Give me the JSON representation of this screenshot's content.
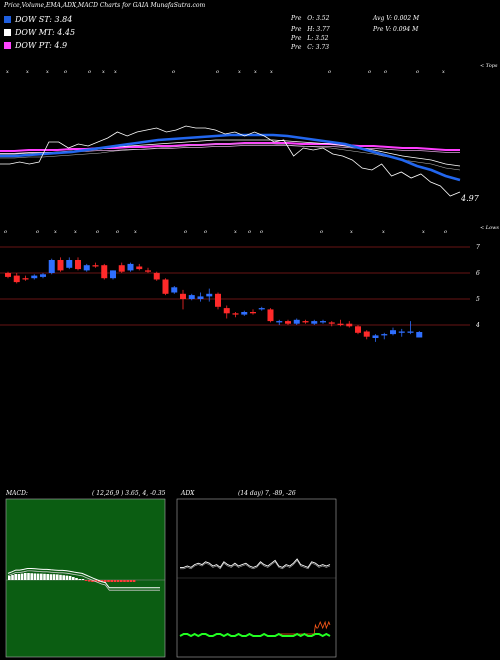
{
  "header": {
    "title": "Price,Volume,EMA,ADX,MACD Charts for GAIA MunafaSutra.com",
    "ohlc": [
      {
        "label": "Pre",
        "key": "O",
        "value": "3.52"
      },
      {
        "label": "Pre",
        "key": "H",
        "value": "3.77"
      },
      {
        "label": "Pre",
        "key": "L",
        "value": "3.52"
      },
      {
        "label": "Pre",
        "key": "C",
        "value": "3.73"
      }
    ],
    "avg_volume": "Avg V: 0.002  M",
    "pre_volume": "Pre  V: 0.094  M"
  },
  "legend": [
    {
      "label": "DOW ST: 3.84",
      "color": "#1f5fdf"
    },
    {
      "label": "DOW MT: 4.45",
      "color": "#ffffff"
    },
    {
      "label": "DOW PT: 4.9",
      "color": "#ff44ff"
    }
  ],
  "labels": {
    "price_corner": "4.97",
    "top_marker": "< Tops",
    "low_marker": "< Lows",
    "tick_mark": "x",
    "cycle_mark": "o"
  },
  "macd_panel": {
    "title": "MACD:",
    "params": "( 12,26,9 ) 3.65,  4,  -0.35"
  },
  "adx_panel": {
    "title": "ADX",
    "params": "(14  day) 7, -89, -26"
  },
  "chart_data": {
    "type": "candlestick",
    "right_axis": {
      "ticks": [
        7,
        6,
        5,
        4
      ]
    },
    "candles": [
      {
        "o": 6.0,
        "h": 6.05,
        "l": 5.8,
        "c": 5.85
      },
      {
        "o": 5.9,
        "h": 6.0,
        "l": 5.6,
        "c": 5.65
      },
      {
        "o": 5.8,
        "h": 5.9,
        "l": 5.7,
        "c": 5.75
      },
      {
        "o": 5.8,
        "h": 5.95,
        "l": 5.75,
        "c": 5.9
      },
      {
        "o": 5.85,
        "h": 6.0,
        "l": 5.8,
        "c": 5.95
      },
      {
        "o": 6.0,
        "h": 6.55,
        "l": 5.95,
        "c": 6.5
      },
      {
        "o": 6.5,
        "h": 6.6,
        "l": 6.05,
        "c": 6.1
      },
      {
        "o": 6.2,
        "h": 6.6,
        "l": 6.15,
        "c": 6.5
      },
      {
        "o": 6.5,
        "h": 6.6,
        "l": 6.1,
        "c": 6.15
      },
      {
        "o": 6.1,
        "h": 6.35,
        "l": 6.05,
        "c": 6.3
      },
      {
        "o": 6.3,
        "h": 6.4,
        "l": 6.2,
        "c": 6.25
      },
      {
        "o": 6.3,
        "h": 6.35,
        "l": 5.75,
        "c": 5.8
      },
      {
        "o": 5.8,
        "h": 6.1,
        "l": 5.75,
        "c": 6.1
      },
      {
        "o": 6.3,
        "h": 6.4,
        "l": 6.0,
        "c": 6.05
      },
      {
        "o": 6.1,
        "h": 6.4,
        "l": 6.05,
        "c": 6.35
      },
      {
        "o": 6.25,
        "h": 6.35,
        "l": 6.1,
        "c": 6.15
      },
      {
        "o": 6.1,
        "h": 6.2,
        "l": 6.0,
        "c": 6.05
      },
      {
        "o": 6.0,
        "h": 6.05,
        "l": 5.7,
        "c": 5.75
      },
      {
        "o": 5.75,
        "h": 5.8,
        "l": 5.15,
        "c": 5.2
      },
      {
        "o": 5.25,
        "h": 5.5,
        "l": 5.2,
        "c": 5.45
      },
      {
        "o": 5.2,
        "h": 5.35,
        "l": 4.6,
        "c": 5.0
      },
      {
        "o": 5.0,
        "h": 5.2,
        "l": 4.95,
        "c": 5.15
      },
      {
        "o": 5.0,
        "h": 5.25,
        "l": 4.9,
        "c": 5.1
      },
      {
        "o": 5.1,
        "h": 5.4,
        "l": 4.9,
        "c": 5.2
      },
      {
        "o": 5.2,
        "h": 5.25,
        "l": 4.6,
        "c": 4.7
      },
      {
        "o": 4.65,
        "h": 4.75,
        "l": 4.25,
        "c": 4.45
      },
      {
        "o": 4.45,
        "h": 4.5,
        "l": 4.3,
        "c": 4.4
      },
      {
        "o": 4.4,
        "h": 4.55,
        "l": 4.35,
        "c": 4.5
      },
      {
        "o": 4.5,
        "h": 4.6,
        "l": 4.4,
        "c": 4.45
      },
      {
        "o": 4.6,
        "h": 4.7,
        "l": 4.55,
        "c": 4.65
      },
      {
        "o": 4.6,
        "h": 4.65,
        "l": 4.1,
        "c": 4.15
      },
      {
        "o": 4.1,
        "h": 4.2,
        "l": 4.0,
        "c": 4.15
      },
      {
        "o": 4.15,
        "h": 4.2,
        "l": 4.0,
        "c": 4.05
      },
      {
        "o": 4.05,
        "h": 4.25,
        "l": 4.0,
        "c": 4.2
      },
      {
        "o": 4.15,
        "h": 4.2,
        "l": 4.05,
        "c": 4.1
      },
      {
        "o": 4.05,
        "h": 4.2,
        "l": 4.0,
        "c": 4.15
      },
      {
        "o": 4.1,
        "h": 4.2,
        "l": 4.05,
        "c": 4.15
      },
      {
        "o": 4.1,
        "h": 4.15,
        "l": 3.95,
        "c": 4.05
      },
      {
        "o": 4.05,
        "h": 4.2,
        "l": 3.95,
        "c": 4.0
      },
      {
        "o": 4.05,
        "h": 4.15,
        "l": 3.9,
        "c": 3.95
      },
      {
        "o": 3.95,
        "h": 4.0,
        "l": 3.65,
        "c": 3.7
      },
      {
        "o": 3.75,
        "h": 3.8,
        "l": 3.45,
        "c": 3.55
      },
      {
        "o": 3.5,
        "h": 3.65,
        "l": 3.35,
        "c": 3.6
      },
      {
        "o": 3.6,
        "h": 3.7,
        "l": 3.45,
        "c": 3.65
      },
      {
        "o": 3.65,
        "h": 3.9,
        "l": 3.6,
        "c": 3.8
      },
      {
        "o": 3.7,
        "h": 3.85,
        "l": 3.55,
        "c": 3.75
      },
      {
        "o": 3.7,
        "h": 4.15,
        "l": 3.65,
        "c": 3.75
      },
      {
        "o": 3.52,
        "h": 3.77,
        "l": 3.52,
        "c": 3.73
      }
    ],
    "close_line": [
      6.8,
      6.8,
      6.9,
      6.8,
      6.9,
      7.9,
      7.9,
      7.6,
      7.8,
      7.7,
      7.9,
      8.1,
      8.4,
      8.2,
      8.4,
      8.5,
      8.6,
      8.4,
      8.5,
      8.7,
      8.6,
      8.6,
      8.5,
      8.3,
      8.4,
      8.2,
      8.4,
      8.2,
      7.9,
      8.0,
      7.2,
      7.6,
      7.5,
      7.6,
      7.3,
      7.2,
      7.0,
      6.6,
      6.5,
      6.8,
      6.2,
      6.4,
      6.1,
      6.3,
      5.9,
      5.7,
      5.2,
      5.4
    ],
    "ema_blue": [
      7.2,
      7.2,
      7.25,
      7.3,
      7.35,
      7.4,
      7.5,
      7.6,
      7.7,
      7.8,
      7.9,
      8.0,
      8.05,
      8.1,
      8.15,
      8.2,
      8.25,
      8.25,
      8.25,
      8.25,
      8.2,
      8.1,
      8.0,
      7.9,
      7.8,
      7.6,
      7.4,
      7.2,
      7.0,
      6.7,
      6.5,
      6.2,
      6.0
    ],
    "ema_white": [
      7.3,
      7.3,
      7.35,
      7.35,
      7.4,
      7.45,
      7.5,
      7.55,
      7.65,
      7.7,
      7.75,
      7.8,
      7.85,
      7.9,
      7.95,
      8.0,
      8.0,
      8.0,
      8.0,
      8.0,
      7.95,
      7.9,
      7.85,
      7.8,
      7.7,
      7.6,
      7.5,
      7.35,
      7.2,
      7.1,
      7.0,
      6.8,
      6.7
    ],
    "ema_magenta": [
      7.45,
      7.45,
      7.5,
      7.5,
      7.5,
      7.55,
      7.55,
      7.6,
      7.6,
      7.65,
      7.65,
      7.7,
      7.7,
      7.75,
      7.75,
      7.8,
      7.8,
      7.85,
      7.85,
      7.85,
      7.85,
      7.8,
      7.8,
      7.8,
      7.75,
      7.7,
      7.7,
      7.65,
      7.6,
      7.6,
      7.55,
      7.5,
      7.5
    ],
    "macd_bars": [
      2,
      2.5,
      3,
      3,
      3.2,
      3.5,
      3.5,
      3.4,
      3.3,
      3.2,
      3.2,
      3.1,
      3.0,
      2.9,
      2.9,
      2.8,
      2.6,
      2.4,
      2.2,
      2.0,
      1.5,
      1.0,
      0.5,
      0,
      -0.5,
      -0.8,
      -1.0,
      -1.0,
      -1.0,
      -1.0,
      -1.0,
      -1.0,
      -1.0,
      -1.0,
      -1.0,
      -1.0,
      -1.0,
      -1.0,
      -1.0,
      -1.0
    ],
    "adx_white": [
      9,
      9,
      10,
      9,
      11,
      12,
      11,
      13,
      12,
      10,
      11,
      9,
      13,
      11,
      10,
      12,
      10,
      11,
      12,
      10,
      9,
      10,
      13,
      11,
      10,
      12,
      14,
      10,
      9,
      11,
      10,
      12,
      15,
      11,
      10,
      9,
      13,
      12,
      10,
      11,
      10,
      11
    ],
    "adx_green": [
      2,
      3,
      3,
      2,
      3,
      2,
      3,
      3,
      2,
      2,
      3,
      3,
      2,
      3,
      2,
      2,
      3,
      2,
      2,
      3,
      2,
      2,
      2,
      3,
      2,
      2,
      2,
      3,
      2,
      2,
      2,
      2,
      3,
      2,
      3,
      2,
      2,
      3,
      3,
      2,
      3,
      2
    ],
    "adx_red": [
      0,
      0,
      0,
      0,
      0,
      0,
      0,
      0,
      0,
      0,
      0,
      0,
      0,
      0,
      0,
      0,
      0,
      0,
      0,
      0,
      0,
      0,
      0,
      0,
      0,
      0,
      0,
      0,
      0,
      3,
      2,
      2,
      3,
      4,
      3,
      2,
      3,
      4,
      2,
      3,
      4,
      3
    ]
  }
}
